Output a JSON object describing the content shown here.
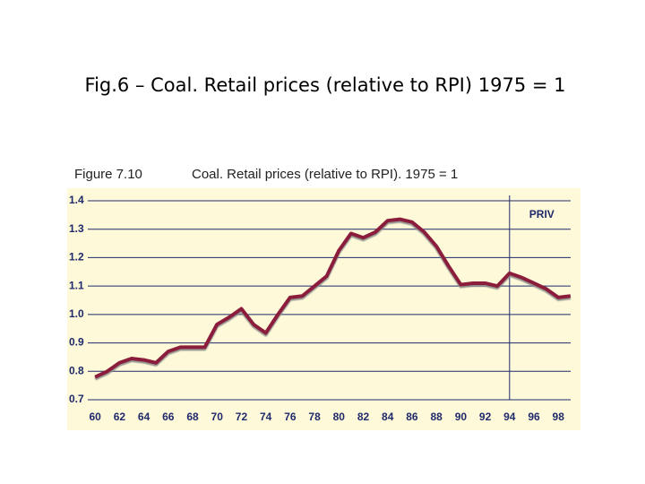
{
  "chart_data": {
    "type": "line",
    "slide_title": "Fig.6 – Coal. Retail prices (relative to RPI) 1975 = 1",
    "figure_label": "Figure 7.10",
    "title": "Coal. Retail prices (relative to RPI). 1975 = 1",
    "x": [
      60,
      61,
      62,
      63,
      64,
      65,
      66,
      67,
      68,
      69,
      70,
      71,
      72,
      73,
      74,
      75,
      76,
      77,
      78,
      79,
      80,
      81,
      82,
      83,
      84,
      85,
      86,
      87,
      88,
      89,
      90,
      91,
      92,
      93,
      94,
      95,
      96,
      97,
      98,
      99
    ],
    "series": [
      {
        "color": "#8b1a3a",
        "values": [
          0.78,
          0.8,
          0.83,
          0.845,
          0.84,
          0.83,
          0.87,
          0.885,
          0.885,
          0.885,
          0.965,
          0.99,
          1.02,
          0.965,
          0.935,
          1.0,
          1.06,
          1.065,
          1.1,
          1.135,
          1.225,
          1.285,
          1.27,
          1.29,
          1.33,
          1.335,
          1.325,
          1.29,
          1.24,
          1.17,
          1.105,
          1.11,
          1.11,
          1.1,
          1.145,
          1.13,
          1.11,
          1.09,
          1.06,
          1.065
        ]
      }
    ],
    "xlim": [
      59.4,
      99.6
    ],
    "xticks": [
      60,
      62,
      64,
      66,
      68,
      70,
      72,
      74,
      76,
      78,
      80,
      82,
      84,
      86,
      88,
      90,
      92,
      94,
      96,
      98
    ],
    "ylim": [
      0.7,
      1.4
    ],
    "yticks": [
      0.7,
      0.8,
      0.9,
      {
        "value": 1,
        "label": "1.0"
      },
      1.1,
      1.2,
      1.3,
      1.4
    ],
    "grid": true,
    "annotations": [
      {
        "text": "PRIV",
        "x": 94
      }
    ]
  }
}
